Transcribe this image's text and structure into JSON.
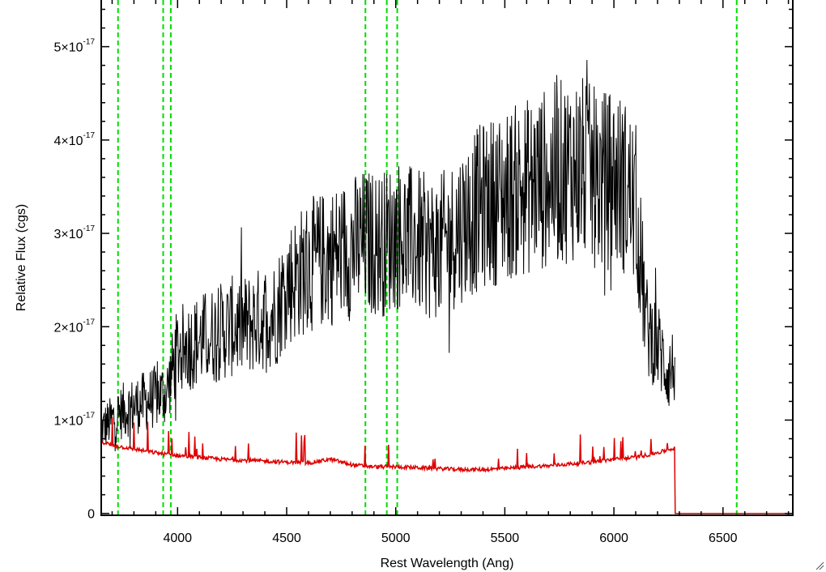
{
  "chart_data": {
    "type": "line",
    "xlabel": "Rest Wavelength (Ang)",
    "ylabel": "Relative Flux (cgs)",
    "xlim": [
      3650,
      6820
    ],
    "ylim": [
      -2e-19,
      5.5e-17
    ],
    "x_ticks": [
      {
        "value": 4000,
        "label": "4000"
      },
      {
        "value": 4500,
        "label": "4500"
      },
      {
        "value": 5000,
        "label": "5000"
      },
      {
        "value": 5500,
        "label": "5500"
      },
      {
        "value": 6000,
        "label": "6000"
      },
      {
        "value": 6500,
        "label": "6500"
      }
    ],
    "y_ticks": [
      {
        "value": 0,
        "mantissa": "0",
        "exponent": ""
      },
      {
        "value": 1e-17,
        "mantissa": "1×10",
        "exponent": "-17"
      },
      {
        "value": 2e-17,
        "mantissa": "2×10",
        "exponent": "-17"
      },
      {
        "value": 3e-17,
        "mantissa": "3×10",
        "exponent": "-17"
      },
      {
        "value": 4e-17,
        "mantissa": "4×10",
        "exponent": "-17"
      },
      {
        "value": 5e-17,
        "mantissa": "5×10",
        "exponent": "-17"
      }
    ],
    "grid": false,
    "reference_lines": {
      "color": "#00dd00",
      "style": "dashed",
      "x": [
        3727,
        3934,
        3969,
        4861,
        4959,
        5007,
        6563
      ]
    },
    "series": [
      {
        "color": "#000000",
        "x": [
          3650,
          3700,
          3750,
          3800,
          3850,
          3900,
          3950,
          4000,
          4050,
          4100,
          4150,
          4200,
          4250,
          4300,
          4350,
          4400,
          4450,
          4500,
          4550,
          4600,
          4650,
          4700,
          4750,
          4800,
          4850,
          4900,
          4950,
          5000,
          5050,
          5100,
          5150,
          5200,
          5250,
          5300,
          5350,
          5400,
          5450,
          5500,
          5550,
          5600,
          5650,
          5700,
          5750,
          5800,
          5850,
          5900,
          5950,
          6000,
          6050,
          6100,
          6150,
          6200,
          6250,
          6280
        ],
        "y": [
          9e-18,
          1e-17,
          1.1e-17,
          1.15e-17,
          1.2e-17,
          1.25e-17,
          1.3e-17,
          1.75e-17,
          1.8e-17,
          1.85e-17,
          1.9e-17,
          1.95e-17,
          2e-17,
          2e-17,
          2.05e-17,
          2.1e-17,
          2.15e-17,
          2.45e-17,
          2.55e-17,
          2.65e-17,
          2.7e-17,
          2.75e-17,
          2.8e-17,
          2.85e-17,
          2.9e-17,
          2.9e-17,
          2.9e-17,
          3e-17,
          2.95e-17,
          2.9e-17,
          2.85e-17,
          2.85e-17,
          2.95e-17,
          3.1e-17,
          3.2e-17,
          3.3e-17,
          3.35e-17,
          3.4e-17,
          3.45e-17,
          3.5e-17,
          3.55e-17,
          3.6e-17,
          3.65e-17,
          3.7e-17,
          3.7e-17,
          3.6e-17,
          3.55e-17,
          3.6e-17,
          3.5e-17,
          3.3e-17,
          2e-17,
          1.8e-17,
          1.5e-17,
          1.6e-17
        ]
      },
      {
        "color": "#dd0000",
        "x": [
          3650,
          3700,
          3800,
          3900,
          4000,
          4100,
          4200,
          4300,
          4400,
          4500,
          4600,
          4700,
          4800,
          4900,
          5000,
          5100,
          5200,
          5300,
          5400,
          5500,
          5600,
          5700,
          5800,
          5900,
          6000,
          6100,
          6200,
          6280,
          6281,
          6820
        ],
        "y": [
          7.7e-18,
          7.3e-18,
          6.9e-18,
          6.5e-18,
          6.2e-18,
          6e-18,
          5.8e-18,
          5.7e-18,
          5.6e-18,
          5.5e-18,
          5.4e-18,
          5.8e-18,
          5.2e-18,
          5e-18,
          5e-18,
          4.9e-18,
          4.8e-18,
          4.7e-18,
          4.7e-18,
          4.8e-18,
          5e-18,
          5.1e-18,
          5.3e-18,
          5.5e-18,
          5.8e-18,
          6e-18,
          6.5e-18,
          7e-18,
          0.0,
          0.0
        ]
      }
    ]
  }
}
